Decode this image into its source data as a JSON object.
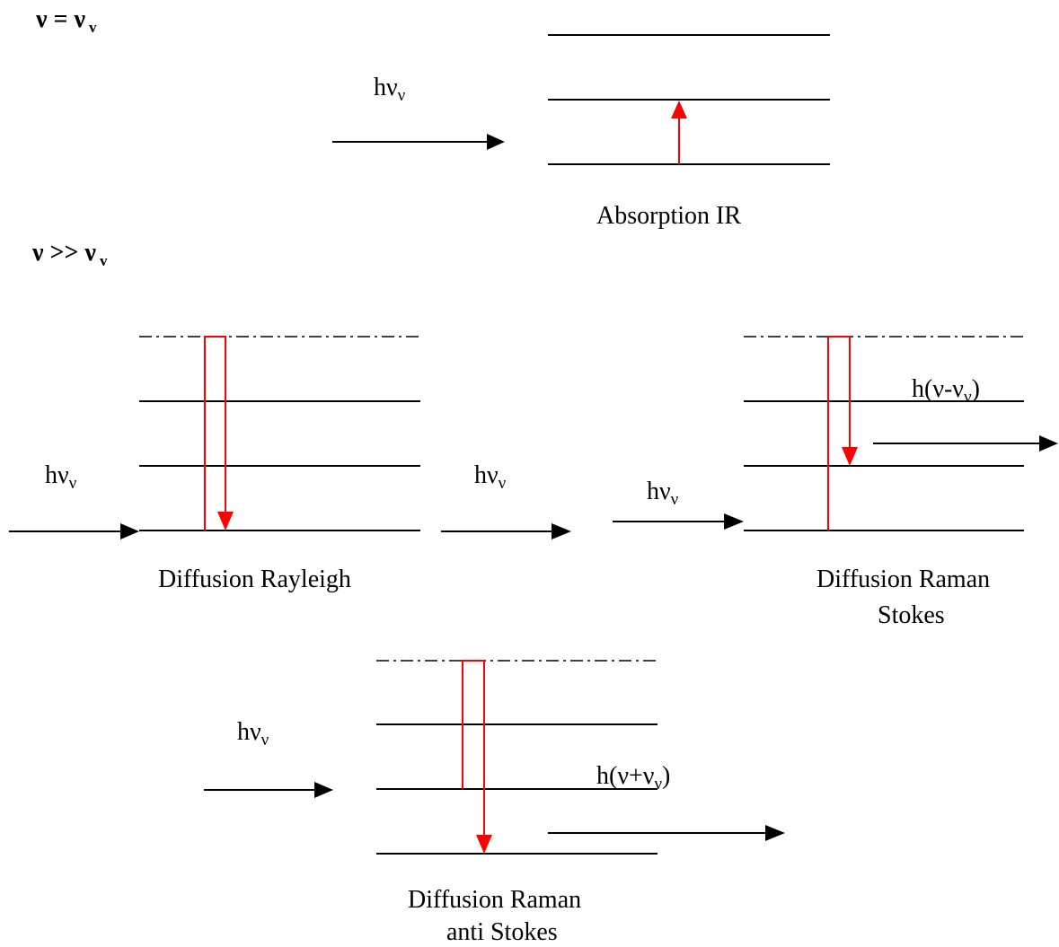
{
  "headings": {
    "equal": {
      "nu": "ν = ν",
      "sub": "v"
    },
    "much_greater": {
      "nu": "ν >> ν",
      "sub": "v"
    }
  },
  "photon_labels": {
    "h_nu_v": {
      "main": "hν",
      "sub": "ν"
    },
    "stokes_out": {
      "main": "h(ν-ν",
      "sub": "ν",
      "close": ")"
    },
    "anti_stokes_out": {
      "main": "h(ν+ν",
      "sub": "ν",
      "close": ")"
    }
  },
  "captions": {
    "absorption_ir": "Absorption IR",
    "rayleigh": "Diffusion Rayleigh",
    "raman_stokes_line1": "Diffusion Raman",
    "raman_stokes_line2": "Stokes",
    "raman_anti_line1": "Diffusion Raman",
    "raman_anti_line2": "anti Stokes"
  },
  "colors": {
    "transition": "#ff0000",
    "levels": "#000000"
  }
}
